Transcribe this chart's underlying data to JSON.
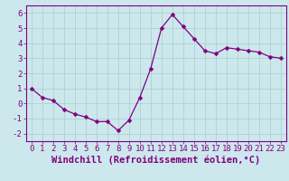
{
  "x": [
    0,
    1,
    2,
    3,
    4,
    5,
    6,
    7,
    8,
    9,
    10,
    11,
    12,
    13,
    14,
    15,
    16,
    17,
    18,
    19,
    20,
    21,
    22,
    23
  ],
  "y": [
    1.0,
    0.4,
    0.2,
    -0.4,
    -0.7,
    -0.9,
    -1.2,
    -1.2,
    -1.8,
    -1.1,
    0.4,
    2.3,
    5.0,
    5.9,
    5.1,
    4.3,
    3.5,
    3.3,
    3.7,
    3.6,
    3.5,
    3.4,
    3.1,
    3.0
  ],
  "line_color": "#800080",
  "marker": "D",
  "marker_size": 2.5,
  "bg_color": "#cce8ec",
  "grid_color": "#aacccc",
  "xlabel": "Windchill (Refroidissement éolien,°C)",
  "ylabel": "",
  "xlim": [
    -0.5,
    23.5
  ],
  "ylim": [
    -2.5,
    6.5
  ],
  "yticks": [
    -2,
    -1,
    0,
    1,
    2,
    3,
    4,
    5,
    6
  ],
  "xticks": [
    0,
    1,
    2,
    3,
    4,
    5,
    6,
    7,
    8,
    9,
    10,
    11,
    12,
    13,
    14,
    15,
    16,
    17,
    18,
    19,
    20,
    21,
    22,
    23
  ],
  "label_color": "#800080",
  "tick_color": "#800080",
  "axis_color": "#800080",
  "font_size": 6.5,
  "xlabel_fontsize": 7.5
}
